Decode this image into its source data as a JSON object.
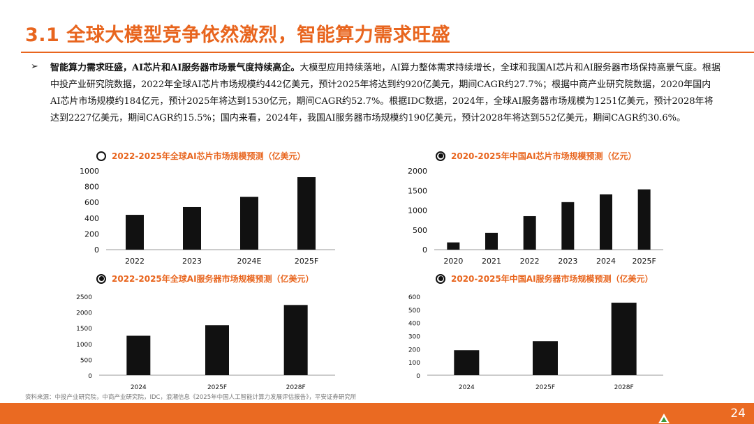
{
  "header": {
    "title": "3.1 全球大模型竞争依然激烈，智能算力需求旺盛"
  },
  "body": {
    "bullet": "➢",
    "lead": "智能算力需求旺盛，AI芯片和AI服务器市场景气度持续高企。",
    "text": "大模型应用持续落地，AI算力整体需求持续增长，全球和我国AI芯片和AI服务器市场保持高景气度。根据中投产业研究院数据，2022年全球AI芯片市场规模约442亿美元，预计2025年将达到约920亿美元，期间CAGR约27.7%；根据中商产业研究院数据，2020年国内AI芯片市场规模约184亿元，预计2025年将达到1530亿元，期间CAGR约52.7%。根据IDC数据，2024年，全球AI服务器市场规模为1251亿美元，预计2028年将达到2227亿美元，期间CAGR约15.5%；国内来看，2024年，我国AI服务器市场规模约190亿美元，预计2028年将达到552亿美元，期间CAGR约30.6%。"
  },
  "chart_data": [
    {
      "type": "bar",
      "title": "2022-2025年全球AI芯片市场规模预测（亿美元）",
      "marker": "empty",
      "categories": [
        "2022",
        "2023",
        "2024E",
        "2025F"
      ],
      "values": [
        442,
        540,
        671,
        920
      ],
      "ylim": [
        0,
        1000
      ],
      "yticks": [
        0,
        200,
        400,
        600,
        800,
        1000
      ]
    },
    {
      "type": "bar",
      "title": "2020-2025年中国AI芯片市场规模预测（亿元）",
      "marker": "filled",
      "categories": [
        "2020",
        "2021",
        "2022",
        "2023",
        "2024",
        "2025F"
      ],
      "values": [
        184,
        427,
        850,
        1206,
        1405,
        1530
      ],
      "ylim": [
        0,
        2000
      ],
      "yticks": [
        0,
        500,
        1000,
        1500,
        2000
      ]
    },
    {
      "type": "bar",
      "title": "2022-2025年全球AI服务器市场规模预测（亿美元）",
      "marker": "filled",
      "categories": [
        "2024",
        "2025F",
        "2028F"
      ],
      "values": [
        1251,
        1587,
        2227
      ],
      "ylim": [
        0,
        2500
      ],
      "yticks": [
        0,
        500,
        1000,
        1500,
        2000,
        2500
      ]
    },
    {
      "type": "bar",
      "title": "2020-2025年中国AI服务器市场规模预测（亿美元）",
      "marker": "filled",
      "categories": [
        "2024",
        "2025F",
        "2028F"
      ],
      "values": [
        190,
        259,
        552
      ],
      "ylim": [
        0,
        600
      ],
      "yticks": [
        0,
        100,
        200,
        300,
        400,
        500,
        600
      ]
    }
  ],
  "footer": {
    "source": "资料来源：中投产业研究院，中商产业研究院，IDC，浪潮信息《2025年中国人工智能计算力发展评估报告》，平安证券研究所",
    "page": "24"
  },
  "colors": {
    "accent": "#e8651e",
    "bar": "#111111",
    "footer": "#ea6a22"
  }
}
